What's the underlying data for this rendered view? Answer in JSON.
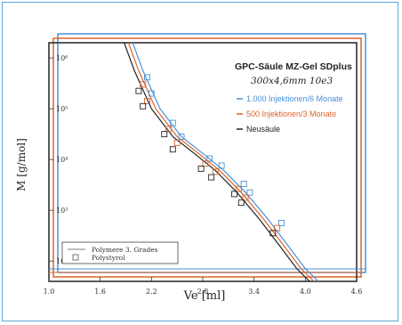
{
  "chart_data": {
    "type": "line",
    "title": "GPC-Säule MZ-Gel SDplus",
    "subtitle": "300x4,6mm 10e3",
    "xlabel": "Ve [ml]",
    "ylabel": "M [g/mol]",
    "xlim": [
      1.0,
      4.6
    ],
    "ylim_log10": [
      1.6,
      6.3
    ],
    "x_ticks": [
      "1.0",
      "1.6",
      "2.2",
      "2.8",
      "3.4",
      "4.0",
      "4.6"
    ],
    "y_ticks": [
      "10²",
      "10³",
      "10⁴",
      "10⁵",
      "10⁶"
    ],
    "legend": {
      "position": "top-right",
      "entries": [
        {
          "label": "1.000 Injektionen/6 Monate",
          "color": "#4a90d9"
        },
        {
          "label": "500 Injektionen/3 Monate",
          "color": "#d9652b"
        },
        {
          "label": "Neusäule",
          "color": "#222222"
        }
      ]
    },
    "legend2": {
      "position": "bottom-left",
      "entries": [
        {
          "label": "Polymere 3. Grades",
          "marker": "line"
        },
        {
          "label": "Polystyrol",
          "marker": "square"
        }
      ]
    },
    "series": [
      {
        "name": "1.000 Injektionen/6 Monate",
        "color": "#4a90d9",
        "curve": [
          [
            1.98,
            6.3
          ],
          [
            2.1,
            5.75
          ],
          [
            2.3,
            5.0
          ],
          [
            2.55,
            4.45
          ],
          [
            2.8,
            4.12
          ],
          [
            3.05,
            3.78
          ],
          [
            3.3,
            3.35
          ],
          [
            3.55,
            2.85
          ],
          [
            3.8,
            2.3
          ],
          [
            4.0,
            1.85
          ],
          [
            4.15,
            1.6
          ]
        ],
        "points": [
          [
            2.15,
            5.62
          ],
          [
            2.2,
            5.3
          ],
          [
            2.45,
            4.72
          ],
          [
            2.55,
            4.45
          ],
          [
            2.88,
            4.02
          ],
          [
            3.02,
            3.88
          ],
          [
            3.28,
            3.52
          ],
          [
            3.35,
            3.35
          ],
          [
            3.72,
            2.75
          ]
        ]
      },
      {
        "name": "500 Injektionen/3 Monate",
        "color": "#d9652b",
        "curve": [
          [
            1.93,
            6.3
          ],
          [
            2.05,
            5.75
          ],
          [
            2.25,
            5.0
          ],
          [
            2.5,
            4.45
          ],
          [
            2.75,
            4.12
          ],
          [
            3.0,
            3.78
          ],
          [
            3.25,
            3.35
          ],
          [
            3.5,
            2.85
          ],
          [
            3.75,
            2.3
          ],
          [
            3.95,
            1.85
          ],
          [
            4.1,
            1.6
          ]
        ],
        "points": [
          [
            2.1,
            5.48
          ],
          [
            2.15,
            5.15
          ],
          [
            2.4,
            4.6
          ],
          [
            2.5,
            4.33
          ],
          [
            2.83,
            3.92
          ],
          [
            2.95,
            3.76
          ],
          [
            3.22,
            3.42
          ],
          [
            3.3,
            3.25
          ],
          [
            3.67,
            2.65
          ]
        ]
      },
      {
        "name": "Neusäule",
        "color": "#222222",
        "curve": [
          [
            1.88,
            6.3
          ],
          [
            2.0,
            5.75
          ],
          [
            2.2,
            5.0
          ],
          [
            2.45,
            4.45
          ],
          [
            2.7,
            4.12
          ],
          [
            2.95,
            3.78
          ],
          [
            3.2,
            3.35
          ],
          [
            3.45,
            2.85
          ],
          [
            3.7,
            2.3
          ],
          [
            3.9,
            1.85
          ],
          [
            4.05,
            1.6
          ]
        ],
        "points": [
          [
            2.05,
            5.35
          ],
          [
            2.1,
            5.05
          ],
          [
            2.35,
            4.5
          ],
          [
            2.45,
            4.2
          ],
          [
            2.78,
            3.82
          ],
          [
            2.9,
            3.65
          ],
          [
            3.17,
            3.32
          ],
          [
            3.25,
            3.15
          ],
          [
            3.62,
            2.55
          ]
        ]
      }
    ]
  }
}
